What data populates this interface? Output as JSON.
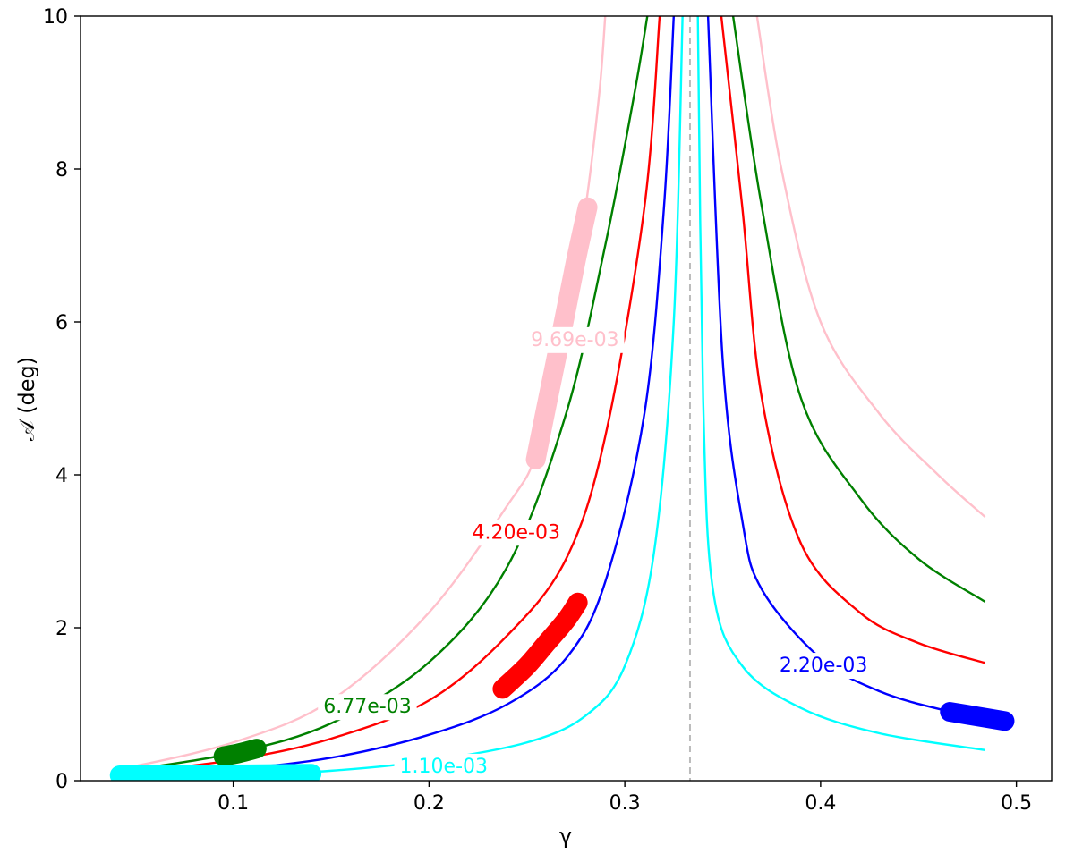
{
  "chart_data": {
    "type": "line",
    "xlabel": "γ",
    "ylabel": "𝒜 (deg)",
    "xlim": [
      0.022,
      0.518
    ],
    "ylim": [
      0,
      10
    ],
    "xticks": [
      0.1,
      0.2,
      0.3,
      0.4,
      0.5
    ],
    "xtick_labels": [
      "0.1",
      "0.2",
      "0.3",
      "0.4",
      "0.5"
    ],
    "yticks": [
      0,
      2,
      4,
      6,
      8,
      10
    ],
    "ytick_labels": [
      "0",
      "2",
      "4",
      "6",
      "8",
      "10"
    ],
    "grid": false,
    "reference_line": {
      "x": 0.3333,
      "style": "dashed",
      "color": "#bbbbbb"
    },
    "series": [
      {
        "label": "9.69e-03",
        "color": "#ffc0cb",
        "left": [
          [
            0.0446,
            0.16
          ],
          [
            0.1,
            0.5
          ],
          [
            0.15,
            1.05
          ],
          [
            0.2,
            2.2
          ],
          [
            0.24,
            3.6
          ],
          [
            0.255,
            4.3
          ],
          [
            0.27,
            5.9
          ],
          [
            0.28,
            7.5
          ],
          [
            0.287,
            9.0
          ],
          [
            0.29,
            10.0
          ]
        ],
        "right": [
          [
            0.3675,
            10.0
          ],
          [
            0.38,
            8.0
          ],
          [
            0.4,
            6.0
          ],
          [
            0.43,
            4.8
          ],
          [
            0.46,
            4.0
          ],
          [
            0.484,
            3.45
          ]
        ],
        "highlight": [
          [
            0.2545,
            4.2
          ],
          [
            0.26,
            4.9
          ],
          [
            0.268,
            5.9
          ],
          [
            0.275,
            6.8
          ],
          [
            0.281,
            7.5
          ]
        ],
        "label_value": [
          0.2745,
          5.78
        ]
      },
      {
        "label": "6.77e-03",
        "color": "#008000",
        "left": [
          [
            0.0446,
            0.13
          ],
          [
            0.1,
            0.36
          ],
          [
            0.15,
            0.75
          ],
          [
            0.2,
            1.55
          ],
          [
            0.24,
            2.8
          ],
          [
            0.27,
            4.8
          ],
          [
            0.29,
            7.0
          ],
          [
            0.305,
            9.0
          ],
          [
            0.3115,
            10.0
          ]
        ],
        "right": [
          [
            0.3553,
            10.0
          ],
          [
            0.37,
            7.5
          ],
          [
            0.39,
            5.0
          ],
          [
            0.42,
            3.7
          ],
          [
            0.45,
            2.9
          ],
          [
            0.484,
            2.34
          ]
        ],
        "highlight": [
          [
            0.095,
            0.32
          ],
          [
            0.103,
            0.36
          ],
          [
            0.112,
            0.42
          ]
        ],
        "label_value": [
          0.1685,
          0.98
        ]
      },
      {
        "label": "4.20e-03",
        "color": "#ff0000",
        "left": [
          [
            0.0446,
            0.1
          ],
          [
            0.1,
            0.27
          ],
          [
            0.15,
            0.55
          ],
          [
            0.2,
            1.05
          ],
          [
            0.24,
            1.9
          ],
          [
            0.27,
            2.9
          ],
          [
            0.29,
            4.5
          ],
          [
            0.31,
            7.5
          ],
          [
            0.3178,
            10.0
          ]
        ],
        "right": [
          [
            0.3493,
            10.0
          ],
          [
            0.36,
            7.5
          ],
          [
            0.37,
            5.0
          ],
          [
            0.39,
            3.1
          ],
          [
            0.42,
            2.2
          ],
          [
            0.45,
            1.8
          ],
          [
            0.484,
            1.54
          ]
        ],
        "highlight": [
          [
            0.2375,
            1.2
          ],
          [
            0.25,
            1.5
          ],
          [
            0.26,
            1.8
          ],
          [
            0.27,
            2.1
          ],
          [
            0.276,
            2.33
          ]
        ],
        "label_value": [
          0.2445,
          3.26
        ]
      },
      {
        "label": "2.20e-03",
        "color": "#0000ff",
        "left": [
          [
            0.0446,
            0.05
          ],
          [
            0.1,
            0.15
          ],
          [
            0.15,
            0.3
          ],
          [
            0.2,
            0.6
          ],
          [
            0.24,
            1.0
          ],
          [
            0.27,
            1.6
          ],
          [
            0.29,
            2.6
          ],
          [
            0.31,
            4.8
          ],
          [
            0.32,
            7.5
          ],
          [
            0.325,
            10.0
          ]
        ],
        "right": [
          [
            0.3425,
            10.0
          ],
          [
            0.35,
            5.5
          ],
          [
            0.36,
            3.4
          ],
          [
            0.37,
            2.5
          ],
          [
            0.4,
            1.6
          ],
          [
            0.43,
            1.17
          ],
          [
            0.465,
            0.91
          ],
          [
            0.495,
            0.78
          ]
        ],
        "highlight": [
          [
            0.466,
            0.9
          ],
          [
            0.48,
            0.84
          ],
          [
            0.494,
            0.78
          ]
        ],
        "label_value": [
          0.4015,
          1.52
        ]
      },
      {
        "label": "1.10e-03",
        "color": "#00ffff",
        "left": [
          [
            0.0446,
            0.03
          ],
          [
            0.1,
            0.07
          ],
          [
            0.15,
            0.13
          ],
          [
            0.2,
            0.26
          ],
          [
            0.25,
            0.5
          ],
          [
            0.28,
            0.85
          ],
          [
            0.3,
            1.5
          ],
          [
            0.315,
            3.0
          ],
          [
            0.325,
            6.0
          ],
          [
            0.3295,
            10.0
          ]
        ],
        "right": [
          [
            0.3373,
            10.0
          ],
          [
            0.34,
            5.0
          ],
          [
            0.345,
            2.5
          ],
          [
            0.36,
            1.5
          ],
          [
            0.39,
            0.95
          ],
          [
            0.43,
            0.62
          ],
          [
            0.484,
            0.4
          ]
        ],
        "highlight": [
          [
            0.042,
            0.07
          ],
          [
            0.09,
            0.08
          ],
          [
            0.14,
            0.09
          ]
        ],
        "label_value": [
          0.2075,
          0.2
        ]
      }
    ]
  }
}
